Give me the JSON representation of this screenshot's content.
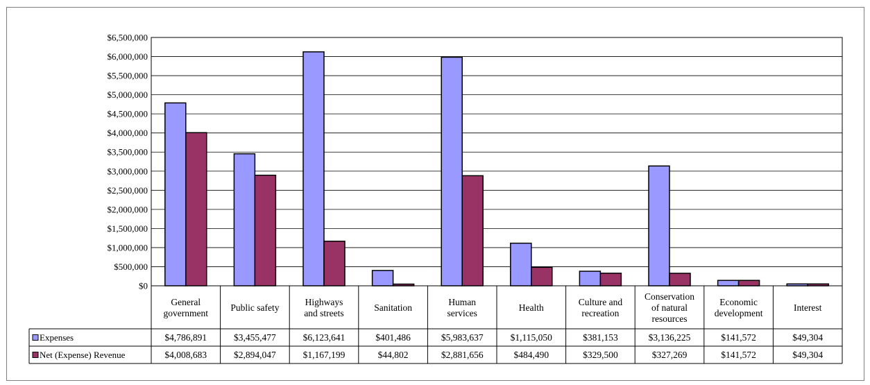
{
  "chart_data": {
    "type": "bar",
    "categories": [
      [
        "General",
        "government"
      ],
      [
        "Public safety"
      ],
      [
        "Highways",
        "and streets"
      ],
      [
        "Sanitation"
      ],
      [
        "Human",
        "services"
      ],
      [
        "Health"
      ],
      [
        "Culture and",
        "recreation"
      ],
      [
        "Conservation",
        "of natural",
        "resources"
      ],
      [
        "Economic",
        "development"
      ],
      [
        "Interest"
      ]
    ],
    "series": [
      {
        "name": "Expenses",
        "color": "#9999ff",
        "values": [
          4786891,
          3455477,
          6123641,
          401486,
          5983637,
          1115050,
          381153,
          3136225,
          141572,
          49304
        ],
        "labels": [
          "$4,786,891",
          "$3,455,477",
          "$6,123,641",
          "$401,486",
          "$5,983,637",
          "$1,115,050",
          "$381,153",
          "$3,136,225",
          "$141,572",
          "$49,304"
        ]
      },
      {
        "name": "Net (Expense) Revenue",
        "color": "#993366",
        "values": [
          4008683,
          2894047,
          1167199,
          44802,
          2881656,
          484490,
          329500,
          327269,
          141572,
          49304
        ],
        "labels": [
          "$4,008,683",
          "$2,894,047",
          "$1,167,199",
          "$44,802",
          "$2,881,656",
          "$484,490",
          "$329,500",
          "$327,269",
          "$141,572",
          "$49,304"
        ]
      }
    ],
    "ylim": [
      0,
      6500000
    ],
    "ytick_labels": [
      "$0",
      "$500,000",
      "$1,000,000",
      "$1,500,000",
      "$2,000,000",
      "$2,500,000",
      "$3,000,000",
      "$3,500,000",
      "$4,000,000",
      "$4,500,000",
      "$5,000,000",
      "$5,500,000",
      "$6,000,000",
      "$6,500,000"
    ],
    "grid": true,
    "legend": "data-table-left"
  }
}
